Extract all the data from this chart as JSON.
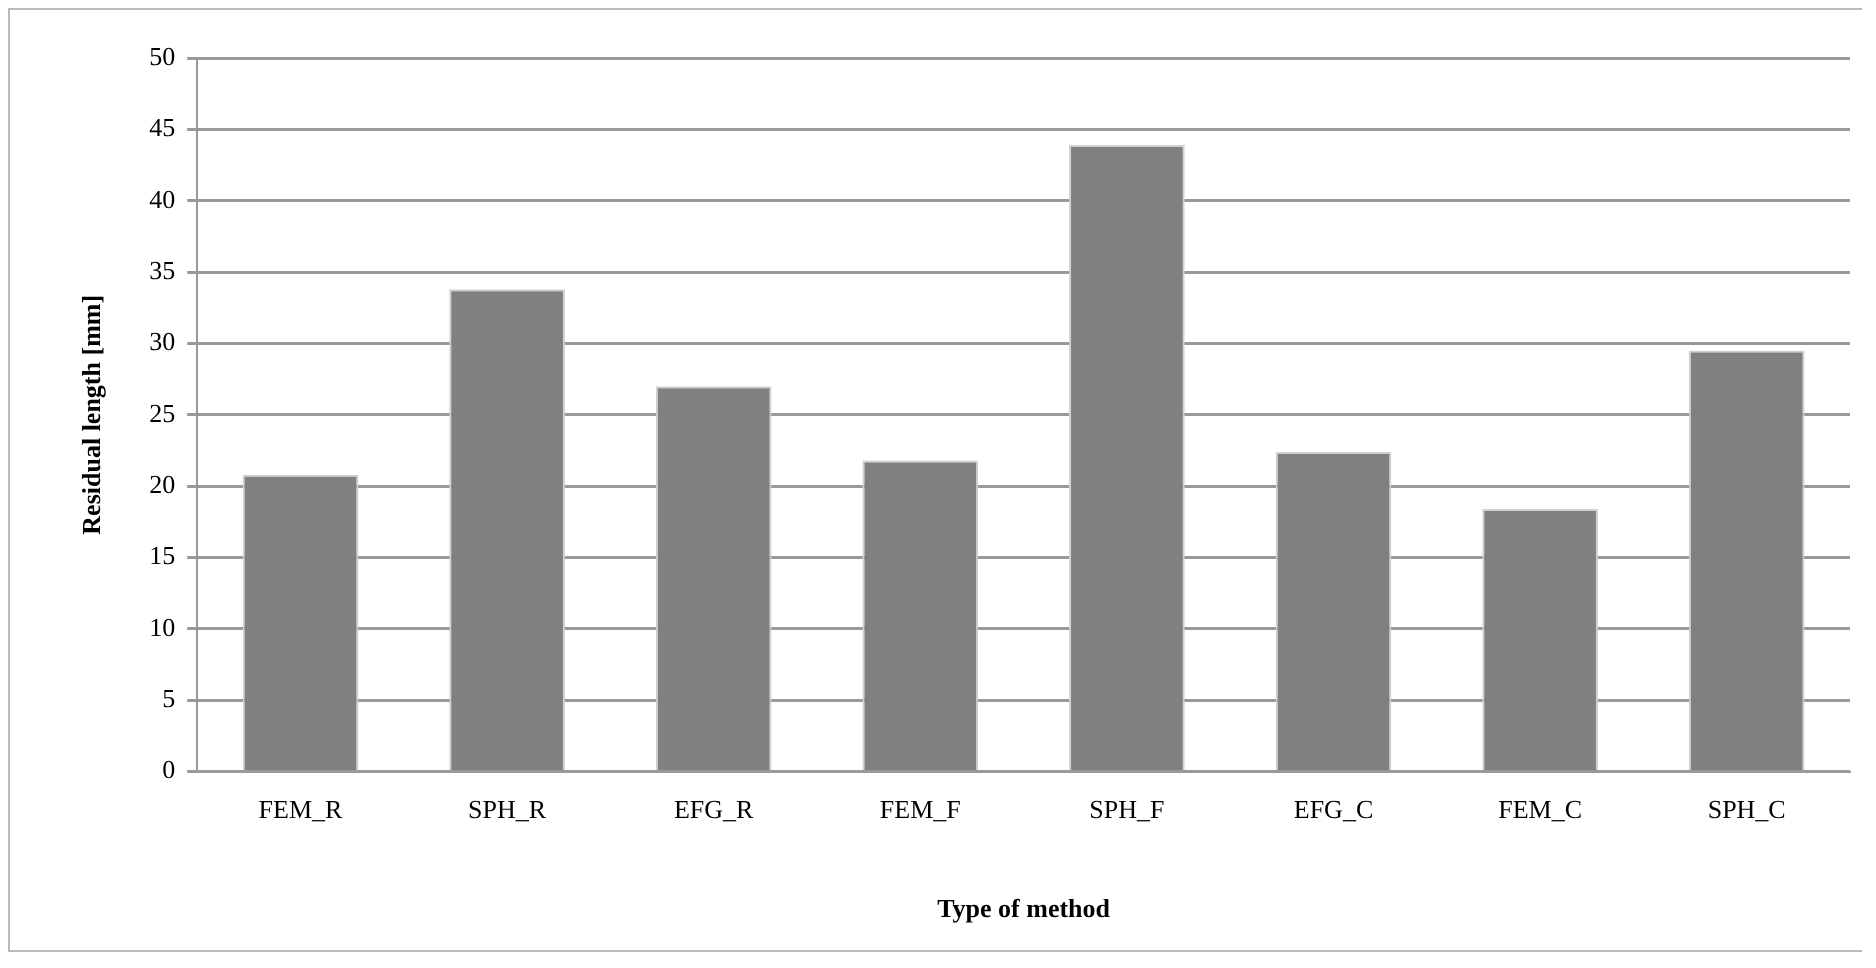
{
  "chart_data": {
    "type": "bar",
    "xlabel": "Type of method",
    "ylabel": "Residual length [mm]",
    "categories": [
      "FEM_R",
      "SPH_R",
      "EFG_R",
      "FEM_F",
      "SPH_F",
      "EFG_C",
      "FEM_C",
      "SPH_C"
    ],
    "values": [
      20.8,
      33.8,
      27.0,
      21.8,
      43.9,
      22.4,
      18.4,
      29.5
    ],
    "color": "#808080",
    "ylim": [
      0,
      50
    ],
    "yticks": [
      0,
      5,
      10,
      15,
      20,
      25,
      30,
      35,
      40,
      45,
      50
    ],
    "grid": "y",
    "legend": false
  }
}
